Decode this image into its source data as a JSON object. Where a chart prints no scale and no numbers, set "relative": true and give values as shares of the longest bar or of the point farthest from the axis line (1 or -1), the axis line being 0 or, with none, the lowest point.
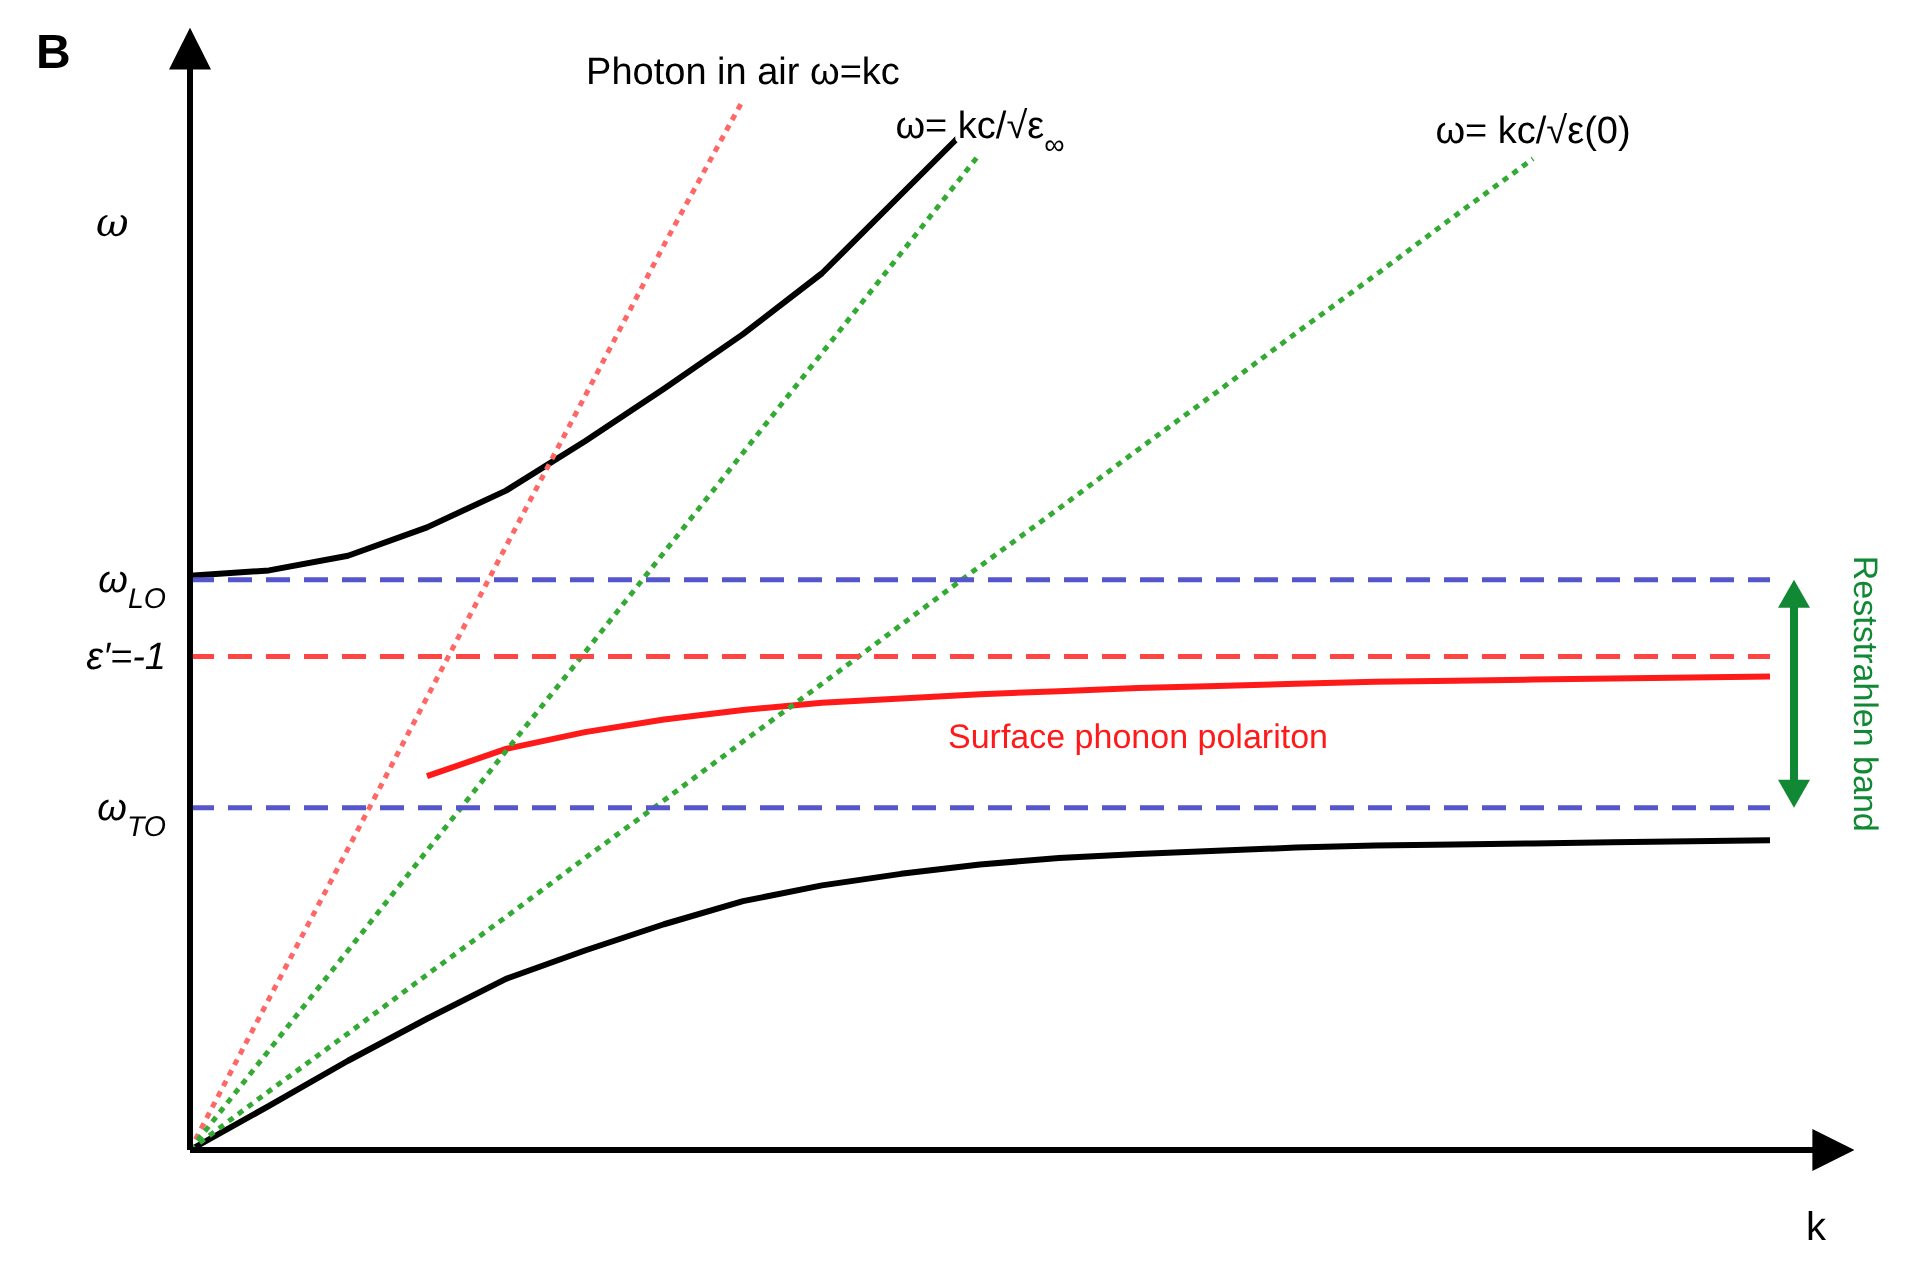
{
  "chart_data": {
    "type": "line",
    "relative": true,
    "xlabel": "k",
    "ylabel": "ω",
    "annotations": [
      "B",
      "Reststrahlen band"
    ],
    "marker": "none",
    "grid": false,
    "categories": [
      null,
      null,
      null,
      null,
      null,
      null,
      null,
      null,
      null,
      null,
      null,
      null,
      null,
      null,
      null,
      null,
      null,
      null,
      null,
      null,
      null
    ],
    "series": [
      {
        "color": "#000000",
        "line_style": "solid",
        "values": [
          0.547,
          0.552,
          0.566,
          0.593,
          0.628,
          0.675,
          0.725,
          0.777,
          0.835,
          0.91,
          0.985,
          null,
          null,
          null,
          null,
          null,
          null,
          null,
          null,
          null,
          null
        ]
      },
      {
        "color": "#000000",
        "line_style": "solid",
        "values": [
          0,
          0.042,
          0.085,
          0.125,
          0.163,
          0.19,
          0.215,
          0.237,
          0.252,
          0.263,
          0.272,
          0.278,
          0.282,
          0.285,
          0.288,
          0.29,
          0.291,
          0.292,
          0.293,
          0.294,
          0.295
        ]
      },
      {
        "name": "Surface phonon polariton",
        "color": "#ff1a1a",
        "line_style": "solid",
        "values": [
          null,
          null,
          null,
          0.356,
          0.382,
          0.398,
          0.41,
          0.419,
          0.426,
          0.43,
          0.434,
          0.437,
          0.44,
          0.442,
          0.444,
          0.446,
          0.447,
          0.448,
          0.449,
          0.45,
          0.451
        ]
      },
      {
        "name": "Photon in air ω=kc",
        "color": "#ff6666",
        "line_style": "dotted",
        "values": [
          0,
          0.144,
          0.287,
          0.431,
          0.575,
          0.718,
          0.862,
          1,
          null,
          null,
          null,
          null,
          null,
          null,
          null,
          null,
          null,
          null,
          null,
          null,
          null
        ]
      },
      {
        "name": "ω= kc/√ε$_{∞}$",
        "color": "#33aa33",
        "line_style": "dotted",
        "values": [
          0,
          0.095,
          0.19,
          0.285,
          0.38,
          0.474,
          0.569,
          0.664,
          0.759,
          0.854,
          0.949,
          null,
          null,
          null,
          null,
          null,
          null,
          null,
          null,
          null,
          null
        ]
      },
      {
        "name": "ω= kc/√ε(0)",
        "color": "#33aa33",
        "line_style": "dotted",
        "values": [
          0,
          0.056,
          0.111,
          0.167,
          0.222,
          0.278,
          0.333,
          0.389,
          0.444,
          0.5,
          0.556,
          0.611,
          0.667,
          0.722,
          0.778,
          0.833,
          0.889,
          0.944,
          null,
          null,
          null
        ]
      },
      {
        "name": "ω$_{LO}$",
        "color": "#5555cc",
        "line_style": "dashed",
        "values": [
          0.543,
          0.543,
          0.543,
          0.543,
          0.543,
          0.543,
          0.543,
          0.543,
          0.543,
          0.543,
          0.543,
          0.543,
          0.543,
          0.543,
          0.543,
          0.543,
          0.543,
          0.543,
          0.543,
          0.543,
          0.543
        ]
      },
      {
        "name": "ε′=-1",
        "color": "#ff4444",
        "line_style": "dashed",
        "values": [
          0.47,
          0.47,
          0.47,
          0.47,
          0.47,
          0.47,
          0.47,
          0.47,
          0.47,
          0.47,
          0.47,
          0.47,
          0.47,
          0.47,
          0.47,
          0.47,
          0.47,
          0.47,
          0.47,
          0.47,
          0.47
        ]
      },
      {
        "name": "ω$_{TO}$",
        "color": "#5555cc",
        "line_style": "dashed",
        "values": [
          0.326,
          0.326,
          0.326,
          0.326,
          0.326,
          0.326,
          0.326,
          0.326,
          0.326,
          0.326,
          0.326,
          0.326,
          0.326,
          0.326,
          0.326,
          0.326,
          0.326,
          0.326,
          0.326,
          0.326,
          0.326
        ]
      }
    ]
  }
}
